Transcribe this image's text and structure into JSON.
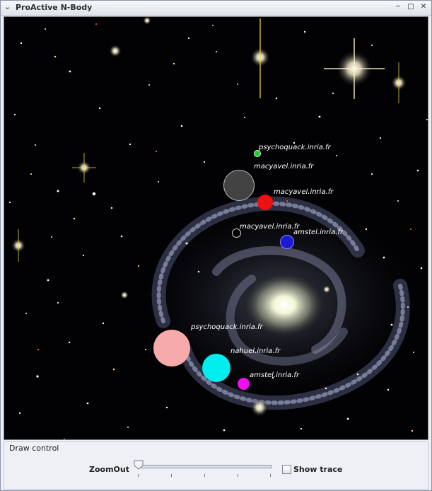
{
  "window": {
    "title": "ProActive N-Body",
    "title_icon": "chevron-down-icon",
    "controls": [
      "minimize-icon",
      "maximize-icon",
      "close-icon"
    ]
  },
  "simulation": {
    "background": "spiral-galaxy-starfield",
    "bodies": [
      {
        "label": "psychoquack.inria.fr",
        "color": "#22cc22"
      },
      {
        "label": "macyavel.inria.fr",
        "color": "#444444"
      },
      {
        "label": "macyavel.inria.fr",
        "color": "#ee1111"
      },
      {
        "label": "macyavel.inria.fr",
        "color": "#000000"
      },
      {
        "label": "amstel.inria.fr",
        "color": "#1a1ad6"
      },
      {
        "label": "psychoquack.inria.fr",
        "color": "#f7aaaa"
      },
      {
        "label": "nahuel.inria.fr",
        "color": "#00eeee"
      },
      {
        "label": "amstel.inria.fr",
        "color": "#ee11ee"
      }
    ]
  },
  "draw_control": {
    "title": "Draw control",
    "zoom_label": "ZoomOut",
    "zoom_value": 0.0,
    "show_trace_label": "Show trace",
    "show_trace_checked": false
  }
}
